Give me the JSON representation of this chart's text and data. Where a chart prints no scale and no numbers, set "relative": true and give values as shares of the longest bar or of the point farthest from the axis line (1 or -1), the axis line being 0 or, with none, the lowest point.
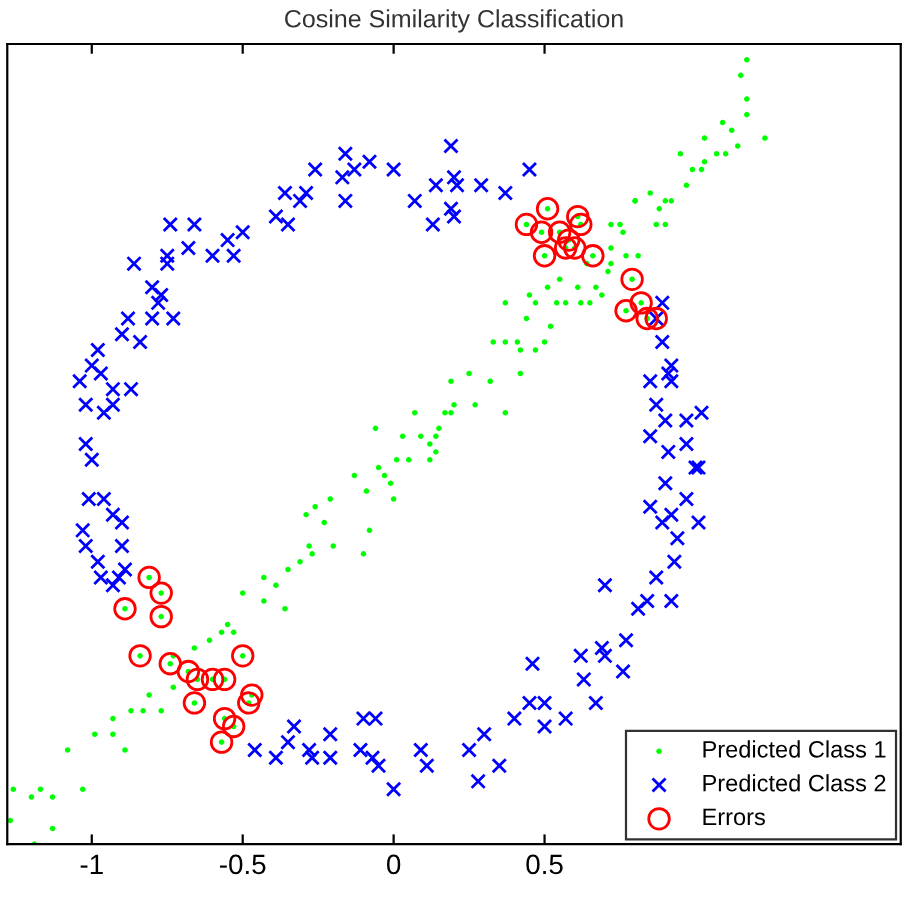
{
  "chart_data": {
    "type": "scatter",
    "title": "Cosine Similarity Classification",
    "xlim": [
      -1.28,
      1.68
    ],
    "xticks": [
      -1,
      -0.5,
      0,
      0.5
    ],
    "relative": true,
    "grid": false,
    "legend": "bottom right",
    "series": [
      {
        "name": "Predicted Class 1",
        "color": "#00ff00",
        "marker": "circle",
        "x": [
          -1.19,
          -1.27,
          -1.13,
          -1.26,
          -1.2,
          -1.17,
          -1.13,
          -1.08,
          -1.03,
          -0.99,
          -0.93,
          -0.89,
          -0.93,
          -0.87,
          -0.83,
          -0.81,
          -0.77,
          -0.73,
          -0.73,
          -0.66,
          -0.61,
          -0.57,
          -0.55,
          -0.53,
          -0.5,
          -0.43,
          -0.43,
          -0.39,
          -0.36,
          -0.35,
          -0.31,
          -0.28,
          -0.27,
          -0.29,
          -0.26,
          -0.23,
          -0.2,
          -0.21,
          -0.13,
          -0.09,
          -0.08,
          -0.1,
          -0.05,
          -0.03,
          -0.01,
          0.01,
          0.05,
          0.12,
          0.14,
          0,
          0.09,
          0.15,
          0.2,
          0.12,
          -0.06,
          0.07,
          0.17,
          0.14,
          0.03,
          1.17,
          1.15,
          1.17,
          1.17,
          1.23,
          1.14,
          1.12,
          1.09,
          1.1,
          1.07,
          1.03,
          0.95,
          0.99,
          1.02,
          1.03,
          0.97,
          0.9,
          0.85,
          0.8,
          0.8,
          0.88,
          0.92,
          0.87,
          0.9,
          0.72,
          0.75,
          0.76,
          0.72,
          0.77,
          0.81,
          0.72,
          0.71,
          0.67,
          0.64,
          0.61,
          0.55,
          0.51,
          0.45,
          0.47,
          0.65,
          0.62,
          0.69,
          0.57,
          0.54,
          0.44,
          0.52,
          0.5,
          0.37,
          0.37,
          0.33,
          0.41,
          0.42,
          0.47,
          0.42,
          0.25,
          0.32,
          0.27,
          0.37,
          0.19,
          0.19,
          -0.81,
          -0.77,
          -0.89,
          -0.77,
          -0.84,
          -0.74,
          -0.68,
          -0.65,
          -0.6,
          -0.56,
          -0.5,
          -0.66,
          -0.47,
          -0.48,
          -0.56,
          -0.53,
          -0.57,
          0.44,
          0.51,
          0.61,
          0.49,
          0.55,
          0.58,
          0.57,
          0.62,
          0.6,
          0.5,
          0.66,
          0.79,
          0.77,
          0.82,
          0.84,
          0.87
        ],
        "values": [
          0.0,
          0.03,
          0.02,
          0.07,
          0.06,
          0.07,
          0.06,
          0.12,
          0.07,
          0.14,
          0.14,
          0.12,
          0.16,
          0.17,
          0.17,
          0.19,
          0.17,
          0.2,
          0.24,
          0.25,
          0.26,
          0.27,
          0.28,
          0.27,
          0.32,
          0.31,
          0.34,
          0.33,
          0.3,
          0.35,
          0.36,
          0.38,
          0.37,
          0.42,
          0.43,
          0.41,
          0.38,
          0.44,
          0.47,
          0.45,
          0.4,
          0.37,
          0.48,
          0.47,
          0.46,
          0.49,
          0.49,
          0.49,
          0.5,
          0.44,
          0.52,
          0.53,
          0.56,
          0.51,
          0.53,
          0.55,
          0.55,
          0.52,
          0.52,
          1.0,
          0.98,
          0.95,
          0.93,
          0.9,
          0.89,
          0.91,
          0.92,
          0.88,
          0.88,
          0.9,
          0.88,
          0.86,
          0.86,
          0.87,
          0.84,
          0.82,
          0.83,
          0.82,
          0.82,
          0.81,
          0.82,
          0.79,
          0.79,
          0.79,
          0.79,
          0.78,
          0.76,
          0.75,
          0.75,
          0.74,
          0.73,
          0.71,
          0.74,
          0.71,
          0.72,
          0.71,
          0.7,
          0.69,
          0.69,
          0.69,
          0.7,
          0.69,
          0.69,
          0.67,
          0.66,
          0.64,
          0.69,
          0.64,
          0.64,
          0.64,
          0.63,
          0.63,
          0.6,
          0.6,
          0.59,
          0.56,
          0.55,
          0.59,
          0.55,
          0.34,
          0.32,
          0.3,
          0.29,
          0.24,
          0.23,
          0.22,
          0.21,
          0.21,
          0.21,
          0.24,
          0.18,
          0.19,
          0.18,
          0.16,
          0.15,
          0.13,
          0.79,
          0.81,
          0.8,
          0.78,
          0.78,
          0.77,
          0.76,
          0.79,
          0.76,
          0.75,
          0.75,
          0.72,
          0.68,
          0.69,
          0.67,
          0.67
        ]
      },
      {
        "name": "Predicted Class 2",
        "color": "#0000ff",
        "marker": "cross",
        "x": [
          0.19,
          -0.16,
          -0.08,
          -0.26,
          -0.17,
          0,
          -0.13,
          -0.36,
          -0.29,
          -0.31,
          -0.16,
          -0.39,
          -0.35,
          0.07,
          0.14,
          0.13,
          0.19,
          0.2,
          -0.66,
          -0.74,
          -0.5,
          -0.55,
          -0.6,
          -0.53,
          -0.68,
          -0.75,
          -0.75,
          -0.86,
          -0.8,
          -0.77,
          -0.78,
          -0.8,
          -0.73,
          -0.88,
          -0.9,
          -0.84,
          -0.98,
          -1,
          -0.97,
          -1.04,
          -0.93,
          -0.87,
          -1.02,
          -0.96,
          -0.93,
          -1.02,
          -1,
          0.21,
          0.29,
          0.37,
          0.45,
          0.2,
          0.89,
          0.87,
          0.89,
          0.92,
          0.91,
          0.85,
          0.92,
          0.87,
          1.02,
          0.97,
          0.9,
          0.85,
          0.97,
          0.91,
          1,
          1.01,
          0.9,
          0.97,
          0.85,
          0.92,
          0.89,
          1.01,
          0.94,
          0.93,
          0.87,
          0.7,
          0.81,
          0.84,
          0.92,
          0.77,
          0.69,
          0.62,
          0.7,
          0.63,
          0.76,
          0.46,
          0.67,
          0.5,
          0.45,
          0.4,
          0.5,
          0.57,
          0.3,
          0.25,
          0.28,
          0.35,
          -1.01,
          -0.96,
          -0.93,
          -0.9,
          -1.03,
          -1.02,
          -0.9,
          -0.98,
          -0.89,
          -0.97,
          -0.93,
          -0.91,
          -0.46,
          -0.39,
          -0.33,
          -0.35,
          -0.28,
          -0.27,
          -0.21,
          -0.21,
          -0.1,
          -0.06,
          -0.11,
          -0.07,
          -0.05,
          0,
          0.09,
          0.11
        ],
        "values": [
          0.89,
          0.88,
          0.87,
          0.86,
          0.85,
          0.86,
          0.86,
          0.83,
          0.83,
          0.82,
          0.82,
          0.8,
          0.79,
          0.82,
          0.84,
          0.79,
          0.81,
          0.85,
          0.79,
          0.79,
          0.78,
          0.77,
          0.75,
          0.75,
          0.76,
          0.75,
          0.74,
          0.74,
          0.71,
          0.7,
          0.69,
          0.67,
          0.67,
          0.67,
          0.65,
          0.64,
          0.63,
          0.61,
          0.6,
          0.59,
          0.58,
          0.58,
          0.56,
          0.55,
          0.56,
          0.51,
          0.49,
          0.84,
          0.84,
          0.83,
          0.86,
          0.8,
          0.69,
          0.67,
          0.64,
          0.61,
          0.6,
          0.59,
          0.59,
          0.56,
          0.55,
          0.54,
          0.54,
          0.52,
          0.51,
          0.5,
          0.48,
          0.48,
          0.46,
          0.44,
          0.43,
          0.42,
          0.41,
          0.41,
          0.39,
          0.36,
          0.34,
          0.33,
          0.3,
          0.31,
          0.31,
          0.26,
          0.25,
          0.24,
          0.24,
          0.21,
          0.22,
          0.23,
          0.18,
          0.18,
          0.18,
          0.16,
          0.15,
          0.16,
          0.14,
          0.12,
          0.08,
          0.1,
          0.44,
          0.44,
          0.42,
          0.41,
          0.4,
          0.38,
          0.38,
          0.36,
          0.35,
          0.34,
          0.33,
          0.34,
          0.12,
          0.11,
          0.15,
          0.13,
          0.12,
          0.11,
          0.14,
          0.11,
          0.16,
          0.16,
          0.12,
          0.11,
          0.1,
          0.07,
          0.12,
          0.1
        ]
      },
      {
        "name": "Errors",
        "color": "#ff0000",
        "marker": "circle",
        "x": [
          -0.81,
          -0.77,
          -0.89,
          -0.77,
          -0.84,
          -0.74,
          -0.68,
          -0.65,
          -0.6,
          -0.56,
          -0.5,
          -0.66,
          -0.47,
          -0.48,
          -0.56,
          -0.53,
          -0.57,
          0.44,
          0.51,
          0.61,
          0.49,
          0.55,
          0.58,
          0.57,
          0.62,
          0.6,
          0.5,
          0.66,
          0.79,
          0.77,
          0.82,
          0.84,
          0.87
        ],
        "values": [
          0.34,
          0.32,
          0.3,
          0.29,
          0.24,
          0.23,
          0.22,
          0.21,
          0.21,
          0.21,
          0.24,
          0.18,
          0.19,
          0.18,
          0.16,
          0.15,
          0.13,
          0.79,
          0.81,
          0.8,
          0.78,
          0.78,
          0.77,
          0.76,
          0.79,
          0.76,
          0.75,
          0.75,
          0.72,
          0.68,
          0.69,
          0.67,
          0.67
        ]
      }
    ]
  }
}
